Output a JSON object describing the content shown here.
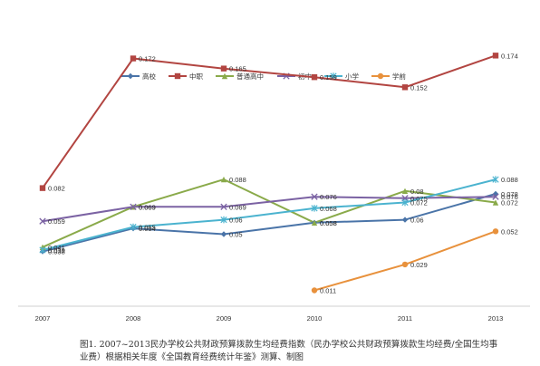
{
  "chart_data": {
    "type": "line",
    "categories": [
      "2007",
      "2008",
      "2009",
      "2010",
      "2011",
      "2013"
    ],
    "ylim": [
      0,
      0.2
    ],
    "grid": false,
    "legend_position": "top-center",
    "series": [
      {
        "name": "高校",
        "color": "#4a74a8",
        "marker": "diamond",
        "values": [
          0.038,
          0.054,
          0.05,
          0.058,
          0.06,
          0.078
        ],
        "labels": [
          "0.038",
          "0.054",
          "0.05",
          "0.058",
          "0.06",
          "0.078"
        ]
      },
      {
        "name": "中职",
        "color": "#b24541",
        "marker": "square",
        "values": [
          0.082,
          0.172,
          0.165,
          0.159,
          0.152,
          0.174
        ],
        "labels": [
          "0.082",
          "0.172",
          "0.165",
          "0.159",
          "0.152",
          "0.174"
        ]
      },
      {
        "name": "普通高中",
        "color": "#8aaa4a",
        "marker": "triangle",
        "values": [
          0.041,
          0.069,
          0.088,
          0.058,
          0.08,
          0.072
        ],
        "labels": [
          "0.041",
          "0.069",
          "0.088",
          "0.058",
          "0.08",
          "0.072"
        ]
      },
      {
        "name": "初中",
        "color": "#7b62a3",
        "marker": "x",
        "values": [
          0.059,
          0.069,
          0.069,
          0.076,
          0.075,
          0.076
        ],
        "labels": [
          "0.059",
          "0.069",
          "0.069",
          "0.076",
          "0.075",
          "0.076"
        ]
      },
      {
        "name": "小学",
        "color": "#4bb3cf",
        "marker": "asterisk",
        "values": [
          0.039,
          0.055,
          0.06,
          0.068,
          0.072,
          0.088
        ],
        "labels": [
          "0.039",
          "0.055",
          "0.06",
          "0.068",
          "0.072",
          "0.088"
        ]
      },
      {
        "name": "学前",
        "color": "#e8913c",
        "marker": "circle",
        "values": [
          null,
          null,
          null,
          0.011,
          0.029,
          0.052
        ],
        "labels": [
          null,
          null,
          null,
          "0.011",
          "0.029",
          "0.052"
        ]
      }
    ]
  },
  "caption": "图1.  2007~2013民办学校公共财政预算拨款生均经费指数（民办学校公共财政预算拨款生均经费/全国生均事业费）根据相关年度《全国教育经费统计年鉴》测算、制图"
}
